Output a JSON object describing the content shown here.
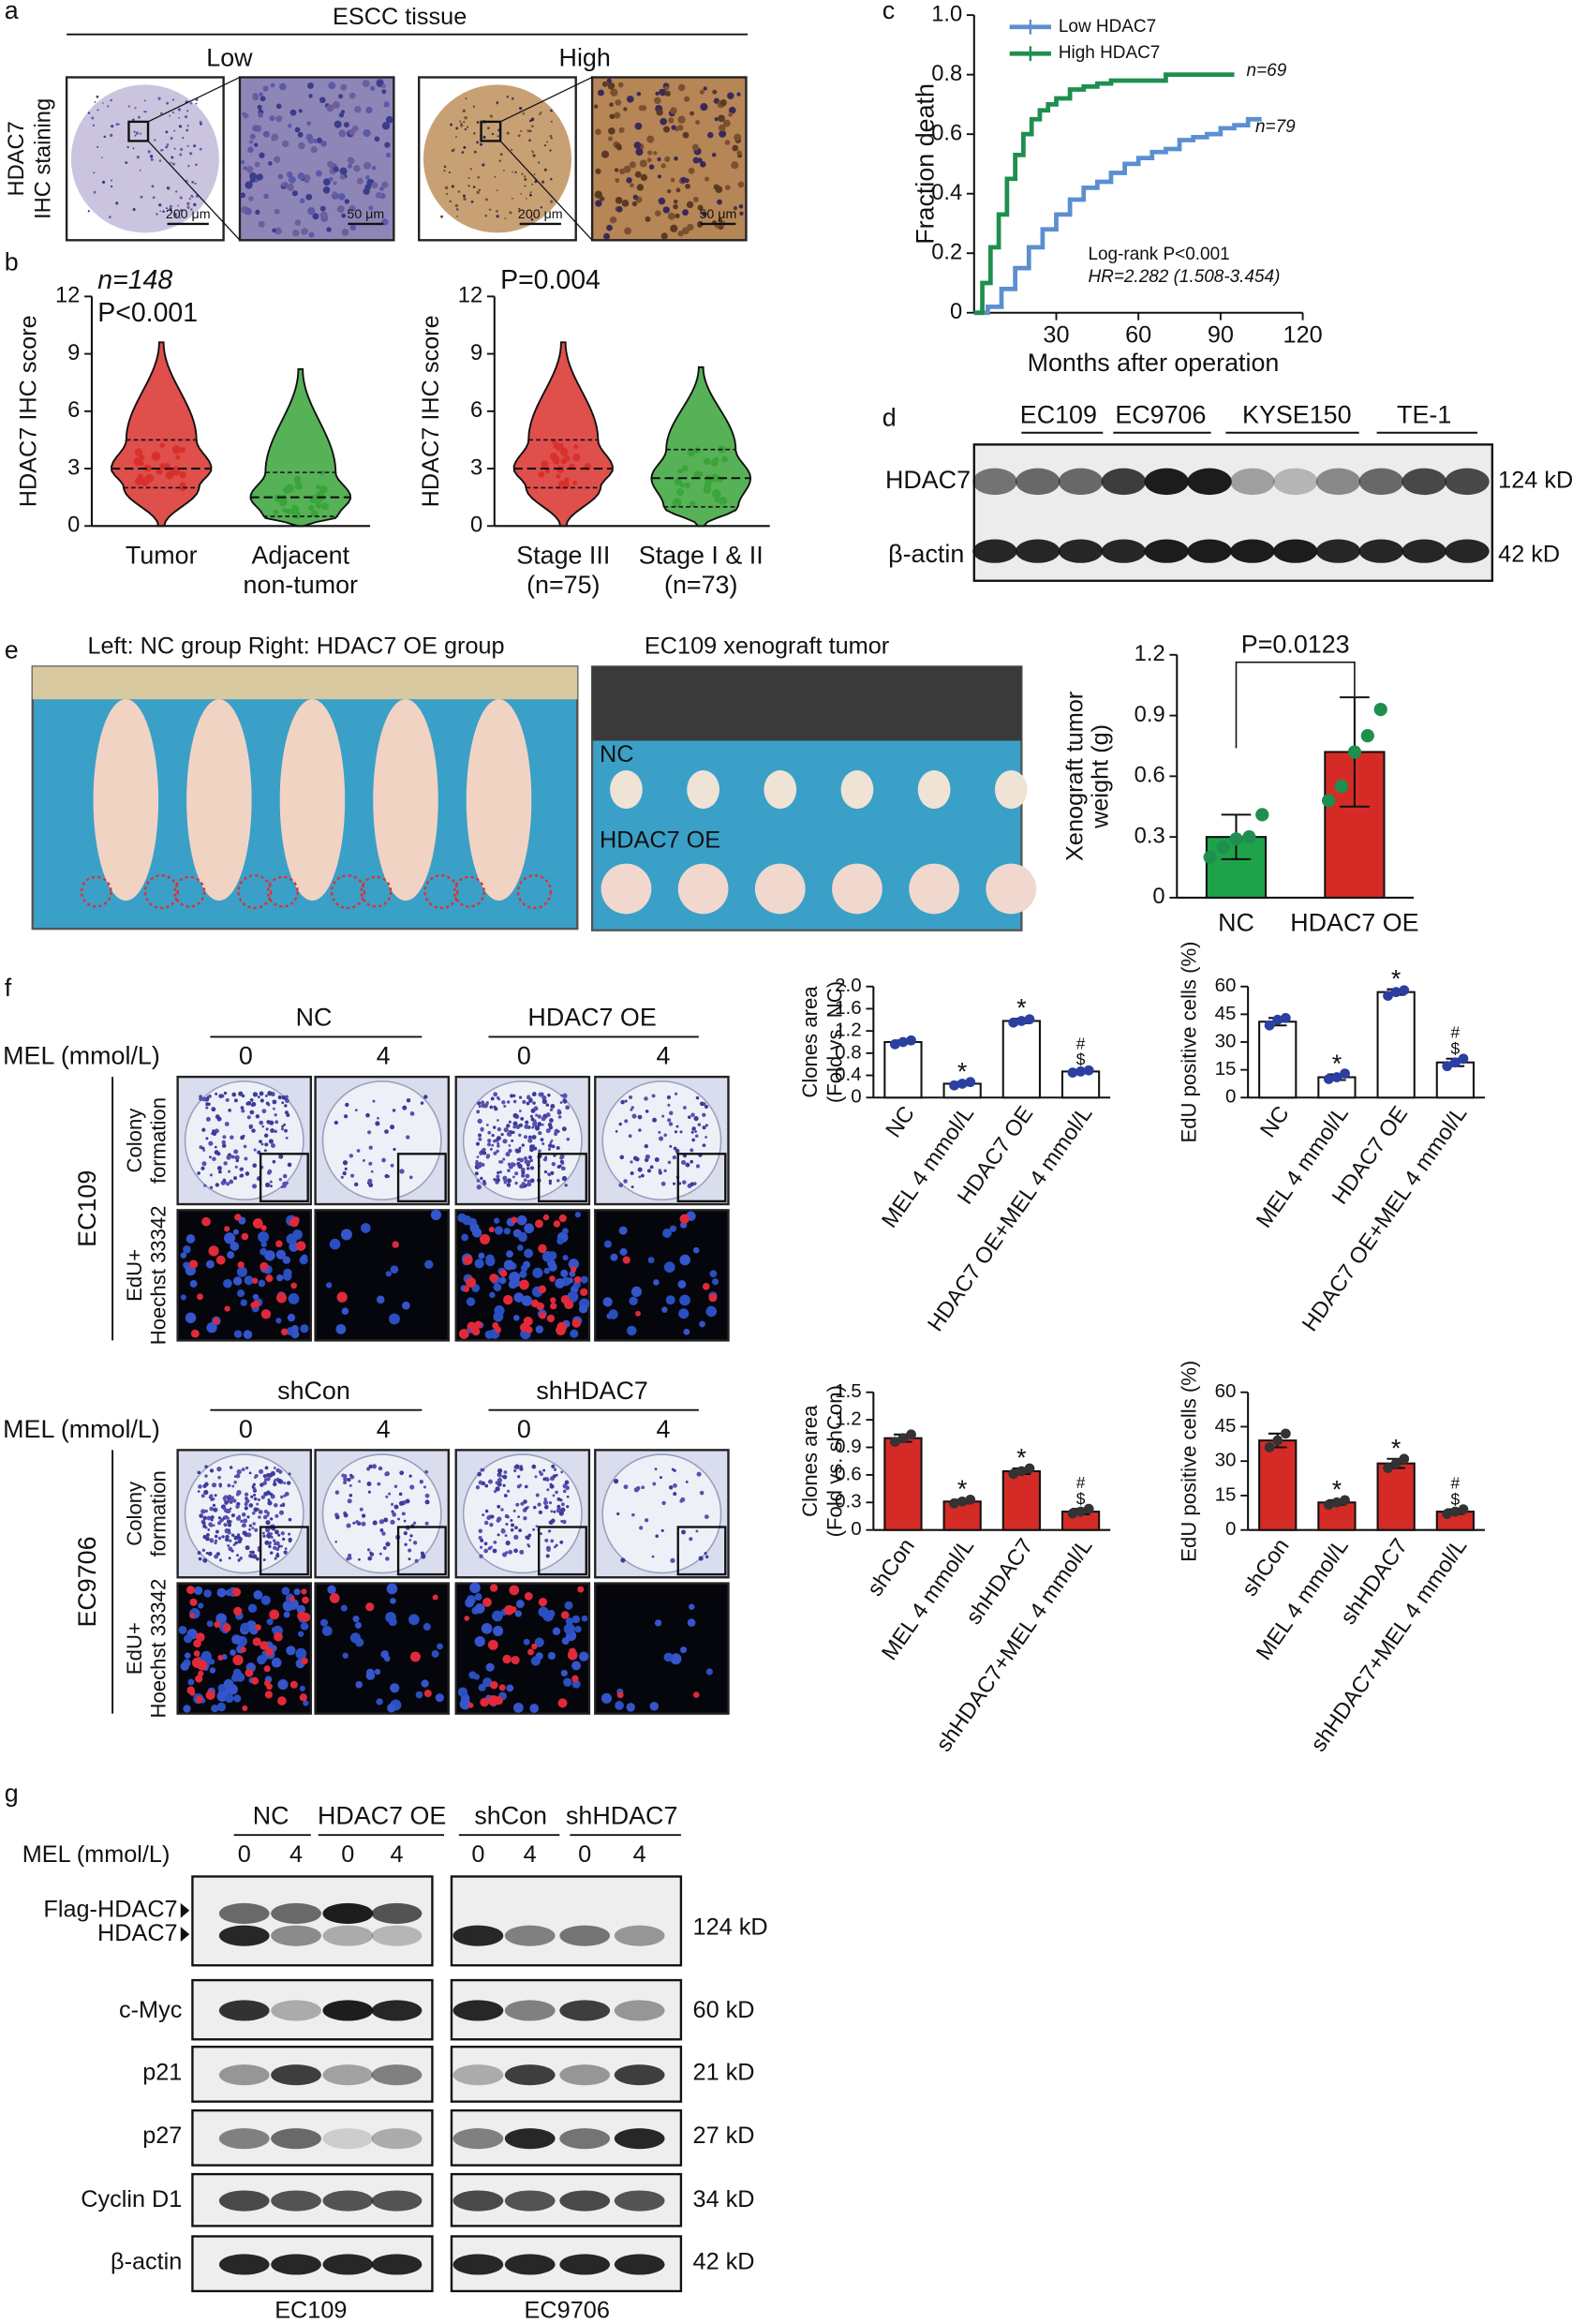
{
  "panel_labels": [
    "a",
    "b",
    "c",
    "d",
    "e",
    "f",
    "g"
  ],
  "a": {
    "header": "ESCC tissue",
    "groups": [
      "Low",
      "High"
    ],
    "ylabel": [
      "HDAC7",
      "IHC staining"
    ],
    "scale_bars": [
      "200 μm",
      "50 μm",
      "200 μm",
      "50 μm"
    ]
  },
  "d": {
    "cell_lines": [
      "EC109",
      "EC9706",
      "KYSE150",
      "TE-1"
    ],
    "rows": [
      "HDAC7",
      "β-actin"
    ],
    "sizes": [
      "124 kD",
      "42 kD"
    ]
  },
  "e": {
    "photo_title_left": "Left: NC group  Right: HDAC7 OE group",
    "photo_title_right": "EC109 xenograft tumor",
    "photo_labels": [
      "NC",
      "HDAC7 OE"
    ]
  },
  "f": {
    "mel_label": "MEL (mmol/L)",
    "doses": [
      "0",
      "4"
    ],
    "row_labels": [
      [
        "Colony",
        "formation"
      ],
      [
        "EdU+",
        "Hoechst 33342"
      ]
    ],
    "blocks": [
      {
        "groups": [
          "NC",
          "HDAC7 OE"
        ],
        "cell_line": "EC109"
      },
      {
        "groups": [
          "shCon",
          "shHDAC7"
        ],
        "cell_line": "EC9706"
      }
    ]
  },
  "g": {
    "groups": [
      "NC",
      "HDAC7 OE",
      "shCon",
      "shHDAC7"
    ],
    "mel_label": "MEL (mmol/L)",
    "doses": [
      "0",
      "4"
    ],
    "rows": [
      "Flag-HDAC7",
      "HDAC7",
      "c-Myc",
      "p21",
      "p27",
      "Cyclin D1",
      "β-actin"
    ],
    "sizes": [
      "124 kD",
      "60 kD",
      "21 kD",
      "27 kD",
      "34 kD",
      "42 kD"
    ],
    "cell_lines": [
      "EC109",
      "EC9706"
    ]
  },
  "chart_data": [
    {
      "type": "violin",
      "annotations": [
        "n=148",
        "P<0.001"
      ],
      "ylabel": "HDAC7 IHC score",
      "categories": [
        "Tumor",
        "Adjacent"
      ],
      "category_sublabels": [
        null,
        "non-tumor"
      ],
      "min": [
        0,
        0
      ],
      "q1": [
        2,
        0.5
      ],
      "median": [
        3,
        1.5
      ],
      "q3": [
        4.5,
        2.8
      ],
      "max": [
        9.6,
        8.2
      ],
      "colors": [
        "#d9302c",
        "#3aa53a"
      ],
      "ylim": [
        0,
        12
      ],
      "yticks": [
        0,
        3,
        6,
        9,
        12
      ]
    },
    {
      "type": "violin",
      "annotations": [
        "P=0.004"
      ],
      "ylabel": "HDAC7 IHC score",
      "categories": [
        "Stage III",
        "Stage I & II"
      ],
      "category_sublabels": [
        "(n=75)",
        "(n=73)"
      ],
      "min": [
        0,
        0
      ],
      "q1": [
        2,
        1
      ],
      "median": [
        3,
        2.5
      ],
      "q3": [
        4.5,
        4
      ],
      "max": [
        9.6,
        8.3
      ],
      "colors": [
        "#d9302c",
        "#3aa53a"
      ],
      "ylim": [
        0,
        12
      ],
      "yticks": [
        0,
        3,
        6,
        9,
        12
      ]
    },
    {
      "type": "km",
      "ylabel": "Fraction death",
      "xlabel": "Months after operation",
      "legend": "upper left",
      "annotations": [
        "n=69",
        "n=79",
        "Log-rank P<0.001",
        "HR=2.282 (1.508-3.454)"
      ],
      "xlim": [
        0,
        120
      ],
      "xticks": [
        30,
        60,
        90,
        120
      ],
      "ylim": [
        0,
        1
      ],
      "yticks": [
        0,
        0.2,
        0.4,
        0.6,
        0.8,
        {
          "value": 1,
          "label": "1.0"
        }
      ],
      "series": [
        {
          "name": "Low HDAC7",
          "color": "#5b8fd0",
          "x": [
            0,
            5,
            10,
            15,
            20,
            25,
            30,
            35,
            40,
            45,
            50,
            55,
            60,
            65,
            70,
            75,
            80,
            85,
            90,
            95,
            100,
            105
          ],
          "values": [
            0,
            0.02,
            0.08,
            0.15,
            0.22,
            0.28,
            0.33,
            0.38,
            0.42,
            0.44,
            0.47,
            0.5,
            0.52,
            0.54,
            0.55,
            0.58,
            0.59,
            0.6,
            0.62,
            0.63,
            0.65,
            0.65
          ]
        },
        {
          "name": "High HDAC7",
          "color": "#1e8f4e",
          "x": [
            0,
            3,
            6,
            9,
            12,
            15,
            18,
            21,
            24,
            27,
            30,
            35,
            40,
            45,
            50,
            60,
            70,
            80,
            90,
            95
          ],
          "values": [
            0,
            0.1,
            0.22,
            0.33,
            0.45,
            0.53,
            0.6,
            0.65,
            0.68,
            0.7,
            0.72,
            0.75,
            0.76,
            0.77,
            0.78,
            0.78,
            0.8,
            0.8,
            0.8,
            0.8
          ]
        }
      ]
    },
    {
      "type": "bar",
      "ylabel": [
        "Xenograft tumor",
        "weight (g)"
      ],
      "annotations": [
        "P=0.0123"
      ],
      "categories": [
        "NC",
        "HDAC7 OE"
      ],
      "values": [
        0.3,
        0.72
      ],
      "errors": [
        0.11,
        0.27
      ],
      "points": [
        [
          0.2,
          0.25,
          0.29,
          0.3,
          0.41
        ],
        [
          0.48,
          0.55,
          0.72,
          0.8,
          0.93
        ]
      ],
      "colors": [
        "#1ea34b",
        "#d52b27"
      ],
      "point_color": "#1e8f4e",
      "ylim": [
        0,
        1.2
      ],
      "yticks": [
        0,
        0.3,
        0.6,
        0.9,
        1.2
      ]
    },
    {
      "type": "bar",
      "ylabel": [
        "Clones area",
        "(Fold vs. NC)"
      ],
      "categories": [
        "NC",
        "MEL 4 mmol/L",
        "HDAC7 OE",
        "HDAC7 OE+MEL 4 mmol/L"
      ],
      "values": [
        1.0,
        0.25,
        1.38,
        0.47
      ],
      "errors": [
        0.03,
        0.03,
        0.04,
        0.03
      ],
      "points": [
        [
          0.96,
          1.0,
          1.03
        ],
        [
          0.22,
          0.25,
          0.28
        ],
        [
          1.35,
          1.38,
          1.41
        ],
        [
          0.45,
          0.47,
          0.49
        ]
      ],
      "markers": [
        [],
        [
          "*"
        ],
        [
          "*"
        ],
        [
          "#",
          "$"
        ]
      ],
      "colors": [
        "#ffffff",
        "#ffffff",
        "#ffffff",
        "#ffffff"
      ],
      "point_color": "#2a3fa0",
      "ylim": [
        0,
        2
      ],
      "yticks": [
        0,
        0.4,
        0.8,
        1.2,
        1.6,
        {
          "value": 2,
          "label": "2.0"
        }
      ]
    },
    {
      "type": "bar",
      "ylabel": [
        "EdU positive cells (%)"
      ],
      "categories": [
        "NC",
        "MEL 4 mmol/L",
        "HDAC7 OE",
        "HDAC7 OE+MEL 4 mmol/L"
      ],
      "values": [
        41,
        11,
        57,
        19
      ],
      "errors": [
        2,
        1.5,
        1.5,
        2
      ],
      "points": [
        [
          39,
          42,
          43
        ],
        [
          10,
          11,
          13
        ],
        [
          55,
          57,
          58
        ],
        [
          17,
          19,
          21
        ]
      ],
      "markers": [
        [],
        [
          "*"
        ],
        [
          "*"
        ],
        [
          "#",
          "$"
        ]
      ],
      "colors": [
        "#ffffff",
        "#ffffff",
        "#ffffff",
        "#ffffff"
      ],
      "point_color": "#2a3fa0",
      "ylim": [
        0,
        60
      ],
      "yticks": [
        0,
        15,
        30,
        45,
        60
      ]
    },
    {
      "type": "bar",
      "ylabel": [
        "Clones area",
        "(Fold vs. shCon)"
      ],
      "categories": [
        "shCon",
        "MEL 4 mmol/L",
        "shHDAC7",
        "shHDAC7+MEL 4 mmol/L"
      ],
      "values": [
        1.0,
        0.31,
        0.64,
        0.2
      ],
      "errors": [
        0.04,
        0.02,
        0.03,
        0.03
      ],
      "points": [
        [
          0.96,
          1.0,
          1.04
        ],
        [
          0.29,
          0.31,
          0.33
        ],
        [
          0.61,
          0.64,
          0.67
        ],
        [
          0.18,
          0.2,
          0.23
        ]
      ],
      "markers": [
        [],
        [
          "*"
        ],
        [
          "*"
        ],
        [
          "#",
          "$"
        ]
      ],
      "colors": [
        "#d52b27",
        "#d52b27",
        "#d52b27",
        "#d52b27"
      ],
      "point_color": "#333333",
      "ylim": [
        0,
        1.5
      ],
      "yticks": [
        0,
        0.3,
        0.6,
        0.9,
        1.2,
        1.5
      ]
    },
    {
      "type": "bar",
      "ylabel": [
        "EdU positive cells (%)"
      ],
      "categories": [
        "shCon",
        "MEL 4 mmol/L",
        "shHDAC7",
        "shHDAC7+MEL 4 mmol/L"
      ],
      "values": [
        39,
        12,
        29,
        8
      ],
      "errors": [
        3,
        1,
        2,
        1
      ],
      "points": [
        [
          36,
          39,
          42
        ],
        [
          11,
          12,
          13
        ],
        [
          27,
          29,
          31
        ],
        [
          7,
          8,
          9
        ]
      ],
      "markers": [
        [],
        [
          "*"
        ],
        [
          "*"
        ],
        [
          "#",
          "$"
        ]
      ],
      "colors": [
        "#d52b27",
        "#d52b27",
        "#d52b27",
        "#d52b27"
      ],
      "point_color": "#333333",
      "ylim": [
        0,
        60
      ],
      "yticks": [
        0,
        15,
        30,
        45,
        60
      ]
    }
  ]
}
